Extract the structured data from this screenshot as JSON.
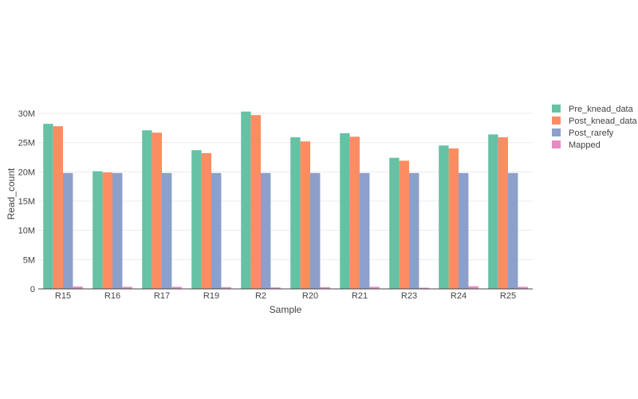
{
  "chart_data": {
    "type": "bar",
    "xlabel": "Sample",
    "ylabel": "Read_count",
    "categories": [
      "R15",
      "R16",
      "R17",
      "R19",
      "R2",
      "R20",
      "R21",
      "R23",
      "R24",
      "R25"
    ],
    "ylim": [
      0,
      30000000
    ],
    "yticks": [
      0,
      5000000,
      10000000,
      15000000,
      20000000,
      25000000,
      30000000
    ],
    "ytick_labels": [
      "0",
      "5M",
      "10M",
      "15M",
      "20M",
      "25M",
      "30M"
    ],
    "grid": true,
    "legend_position": "top-right",
    "series": [
      {
        "name": "Pre_knead_data",
        "color": "#66c2a5",
        "values": [
          28200000,
          20100000,
          27100000,
          23700000,
          30300000,
          25900000,
          26600000,
          22400000,
          24500000,
          26400000
        ]
      },
      {
        "name": "Post_knead_data",
        "color": "#fc8d62",
        "values": [
          27800000,
          19900000,
          26700000,
          23200000,
          29700000,
          25200000,
          26000000,
          21900000,
          24000000,
          25900000
        ]
      },
      {
        "name": "Post_rarefy",
        "color": "#8da0cb",
        "values": [
          19800000,
          19800000,
          19800000,
          19800000,
          19800000,
          19800000,
          19800000,
          19800000,
          19800000,
          19800000
        ]
      },
      {
        "name": "Mapped",
        "color": "#e78ac3",
        "values": [
          400000,
          350000,
          350000,
          300000,
          250000,
          300000,
          350000,
          200000,
          450000,
          350000
        ]
      }
    ]
  }
}
